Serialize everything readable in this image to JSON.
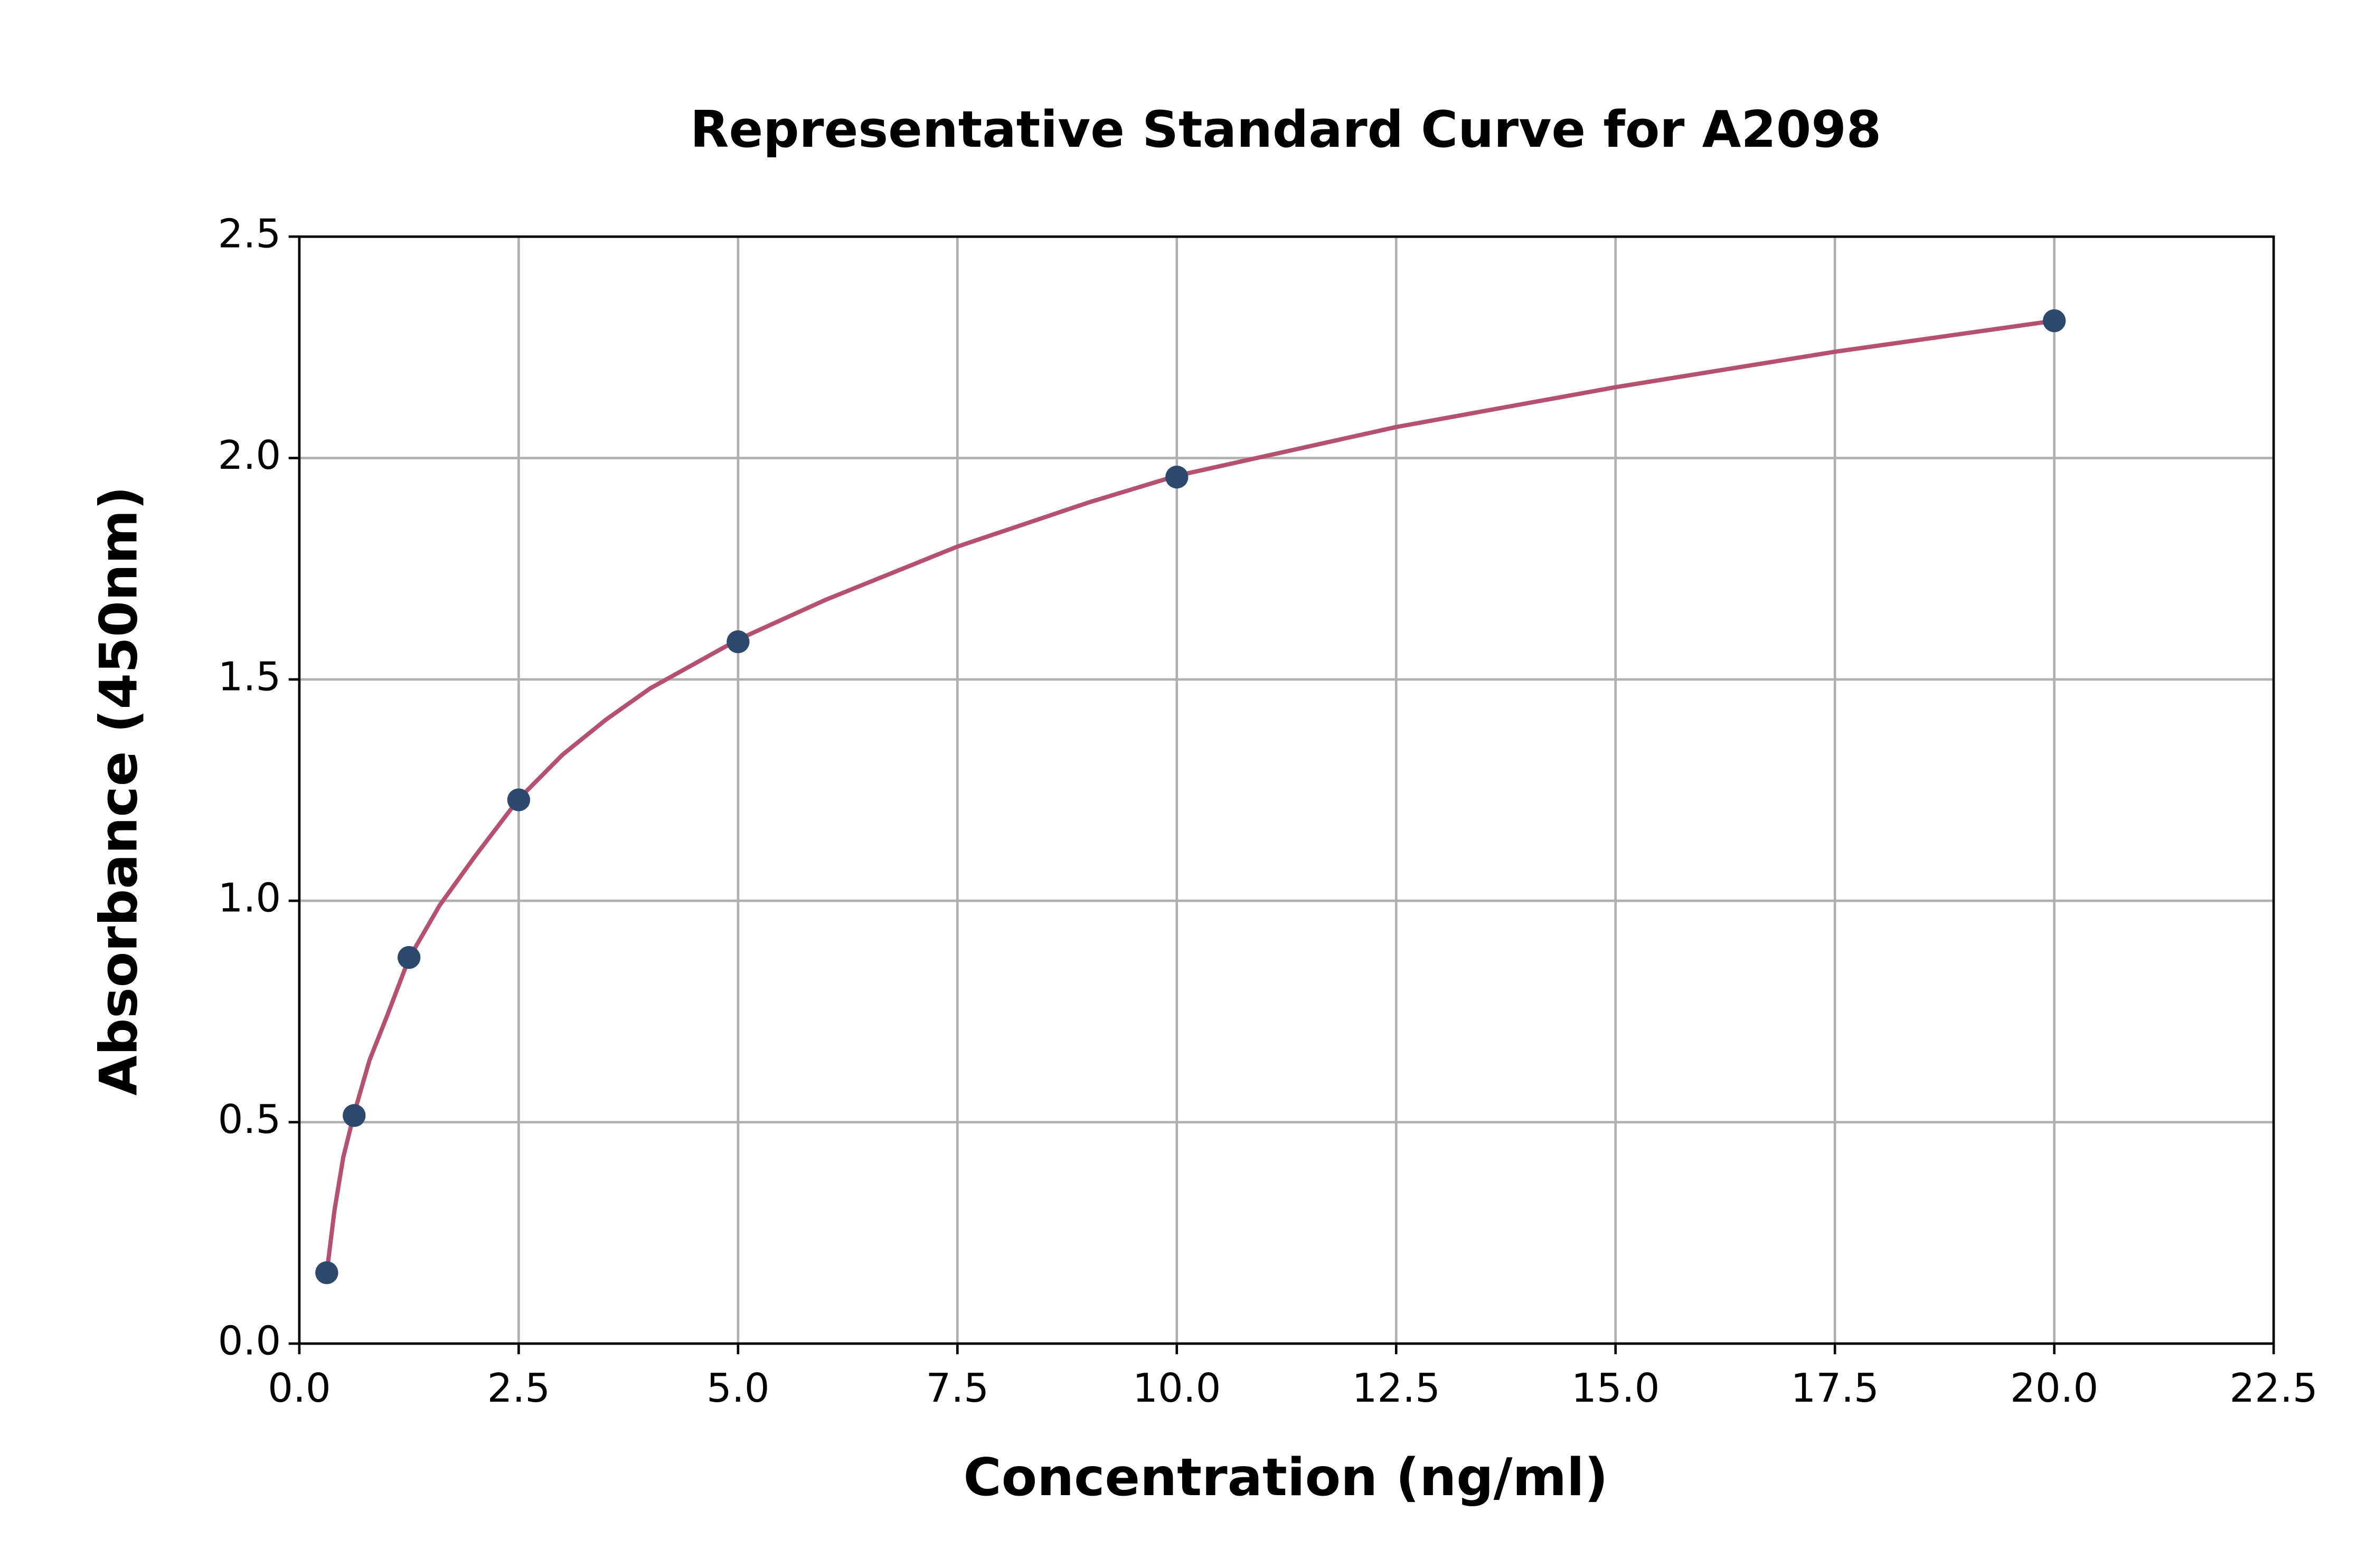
{
  "chart_data": {
    "type": "scatter",
    "title": "Representative Standard Curve for A2098",
    "x_label": "Concentration (ng/ml)",
    "y_label": "Absorbance (450nm)",
    "x": [
      0.3125,
      0.625,
      1.25,
      2.5,
      5,
      10,
      20
    ],
    "series": [
      {
        "color": "#2d4a6e",
        "values": [
          0.16,
          0.515,
          0.872,
          1.228,
          1.585,
          1.957,
          2.31
        ]
      }
    ],
    "curve": {
      "color": "#b5506e",
      "x": [
        0.3125,
        0.4,
        0.5,
        0.625,
        0.8,
        1,
        1.25,
        1.6,
        2,
        2.5,
        3,
        3.5,
        4,
        5,
        6,
        7.5,
        9,
        10,
        12.5,
        15,
        17.5,
        20
      ],
      "values": [
        0.16,
        0.3,
        0.42,
        0.52,
        0.64,
        0.74,
        0.87,
        0.99,
        1.1,
        1.23,
        1.33,
        1.41,
        1.48,
        1.59,
        1.68,
        1.8,
        1.9,
        1.96,
        2.07,
        2.16,
        2.24,
        2.31
      ]
    },
    "xlim": [
      0,
      22.5
    ],
    "ylim": [
      0,
      2.5
    ],
    "xticks": [
      {
        "value": 0,
        "label": "0.0"
      },
      2.5,
      {
        "value": 5,
        "label": "5.0"
      },
      7.5,
      {
        "value": 10,
        "label": "10.0"
      },
      12.5,
      {
        "value": 15,
        "label": "15.0"
      },
      17.5,
      {
        "value": 20,
        "label": "20.0"
      },
      22.5
    ],
    "yticks": [
      {
        "value": 0,
        "label": "0.0"
      },
      0.5,
      {
        "value": 1,
        "label": "1.0"
      },
      1.5,
      {
        "value": 2,
        "label": "2.0"
      },
      2.5
    ],
    "grid": true
  }
}
